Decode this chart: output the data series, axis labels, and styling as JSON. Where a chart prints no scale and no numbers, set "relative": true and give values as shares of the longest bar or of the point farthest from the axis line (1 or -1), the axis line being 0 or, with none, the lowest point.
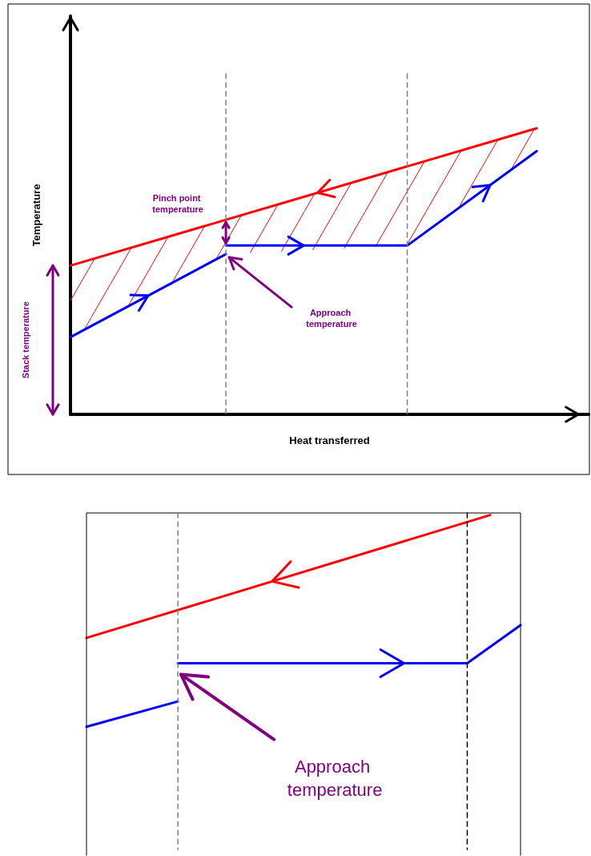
{
  "chart_data": [
    {
      "type": "line",
      "relative": true,
      "xlabel": "Heat transferred",
      "ylabel": "Temperature",
      "marker": "none",
      "line_style": "solid",
      "categories": [
        null,
        null,
        null,
        null,
        null,
        null,
        null,
        null,
        null,
        null,
        null,
        null,
        null,
        null,
        null,
        null,
        null,
        null,
        null
      ],
      "series": [
        {
          "color": "#ff0000",
          "values": [
            0.52,
            null,
            null,
            null,
            null,
            null,
            null,
            null,
            null,
            null,
            null,
            null,
            null,
            null,
            null,
            null,
            null,
            null,
            1.0
          ],
          "lower": [
            0.27,
            null,
            null,
            null,
            null,
            null,
            0.56,
            null,
            null,
            null,
            null,
            null,
            null,
            0.59,
            null,
            null,
            null,
            null,
            0.92
          ],
          "upper": [
            0.52,
            null,
            null,
            null,
            null,
            null,
            0.68,
            null,
            null,
            null,
            null,
            null,
            null,
            0.87,
            null,
            null,
            null,
            null,
            1.0
          ]
        },
        {
          "color": "#0000ff",
          "values": [
            0.27,
            null,
            null,
            null,
            null,
            null,
            0.56,
            null,
            null,
            null,
            null,
            null,
            null,
            null,
            null,
            null,
            null,
            null,
            null
          ]
        },
        {
          "color": "#0000ff",
          "values": [
            null,
            null,
            null,
            null,
            null,
            null,
            0.59,
            null,
            null,
            null,
            null,
            null,
            null,
            0.59,
            null,
            null,
            null,
            null,
            0.92
          ]
        }
      ],
      "annotations": [
        "Pinch point temperature",
        "Approach temperature",
        "Stack temperature"
      ]
    },
    {
      "type": "line",
      "relative": true,
      "marker": "none",
      "line_style": "solid",
      "categories": [
        null,
        null,
        null,
        null,
        null,
        null,
        null,
        null,
        null,
        null,
        null,
        null,
        null,
        null,
        null,
        null,
        null,
        null,
        null,
        null,
        null,
        null,
        null,
        null,
        null,
        null,
        null,
        null,
        null,
        null,
        null,
        null,
        null,
        null,
        null,
        null,
        null,
        null,
        null,
        null,
        null,
        null,
        null,
        null,
        null,
        null,
        null,
        null,
        null,
        null,
        null,
        null,
        null,
        null,
        null,
        null,
        null,
        null
      ],
      "series": [
        {
          "color": "#ff0000",
          "values": [
            0.42,
            null,
            null,
            null,
            null,
            null,
            null,
            null,
            null,
            null,
            null,
            null,
            null,
            null,
            null,
            null,
            null,
            null,
            null,
            null,
            null,
            null,
            null,
            null,
            null,
            null,
            null,
            null,
            null,
            null,
            null,
            null,
            null,
            null,
            null,
            null,
            null,
            null,
            null,
            null,
            null,
            null,
            null,
            null,
            null,
            null,
            null,
            null,
            null,
            null,
            null,
            null,
            null,
            1.0,
            null,
            null,
            null,
            null
          ]
        },
        {
          "color": "#0000ff",
          "values": [
            0,
            null,
            null,
            null,
            null,
            null,
            null,
            null,
            null,
            null,
            null,
            null,
            0.12,
            null,
            null,
            null,
            null,
            null,
            null,
            null,
            null,
            null,
            null,
            null,
            null,
            null,
            null,
            null,
            null,
            null,
            null,
            null,
            null,
            null,
            null,
            null,
            null,
            null,
            null,
            null,
            null,
            null,
            null,
            null,
            null,
            null,
            null,
            null,
            null,
            null,
            null,
            null,
            null,
            null,
            null,
            null,
            null,
            null
          ]
        },
        {
          "color": "#0000ff",
          "values": [
            null,
            null,
            null,
            null,
            null,
            null,
            null,
            null,
            null,
            null,
            null,
            null,
            0.3,
            null,
            null,
            null,
            null,
            null,
            null,
            null,
            null,
            null,
            null,
            null,
            null,
            null,
            null,
            null,
            null,
            null,
            null,
            null,
            null,
            null,
            null,
            null,
            null,
            null,
            null,
            null,
            null,
            null,
            null,
            null,
            null,
            null,
            null,
            null,
            null,
            null,
            0.3,
            null,
            null,
            null,
            null,
            null,
            null,
            0.48
          ]
        }
      ],
      "annotations": [
        "Approach temperature"
      ]
    }
  ]
}
